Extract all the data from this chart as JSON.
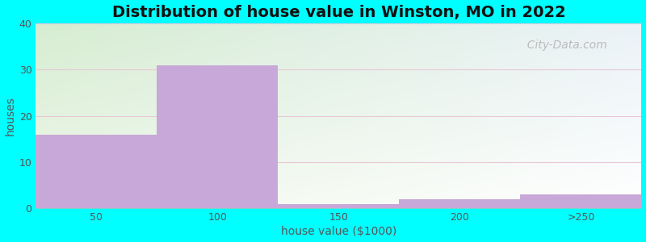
{
  "title": "Distribution of house value in Winston, MO in 2022",
  "xlabel": "house value ($1000)",
  "ylabel": "houses",
  "categories": [
    "50",
    "100",
    "150",
    "200",
    ">250"
  ],
  "values": [
    16,
    31,
    1,
    2,
    3
  ],
  "bar_color": "#c8a8d8",
  "bar_edgecolor": "#c8a8d8",
  "ylim": [
    0,
    40
  ],
  "yticks": [
    0,
    10,
    20,
    30,
    40
  ],
  "figure_bg": "#00FFFF",
  "plot_bg_topleft": "#d8ecd0",
  "plot_bg_topright": "#e8f0f8",
  "plot_bg_bottomleft": "#f0f8ea",
  "plot_bg_bottomright": "#ffffff",
  "bar_width": 1.0,
  "title_fontsize": 14,
  "label_fontsize": 10,
  "tick_fontsize": 9,
  "watermark": "City-Data.com",
  "grid_color": "#e8c8d8",
  "xlim_left": 0,
  "xlim_right": 5
}
